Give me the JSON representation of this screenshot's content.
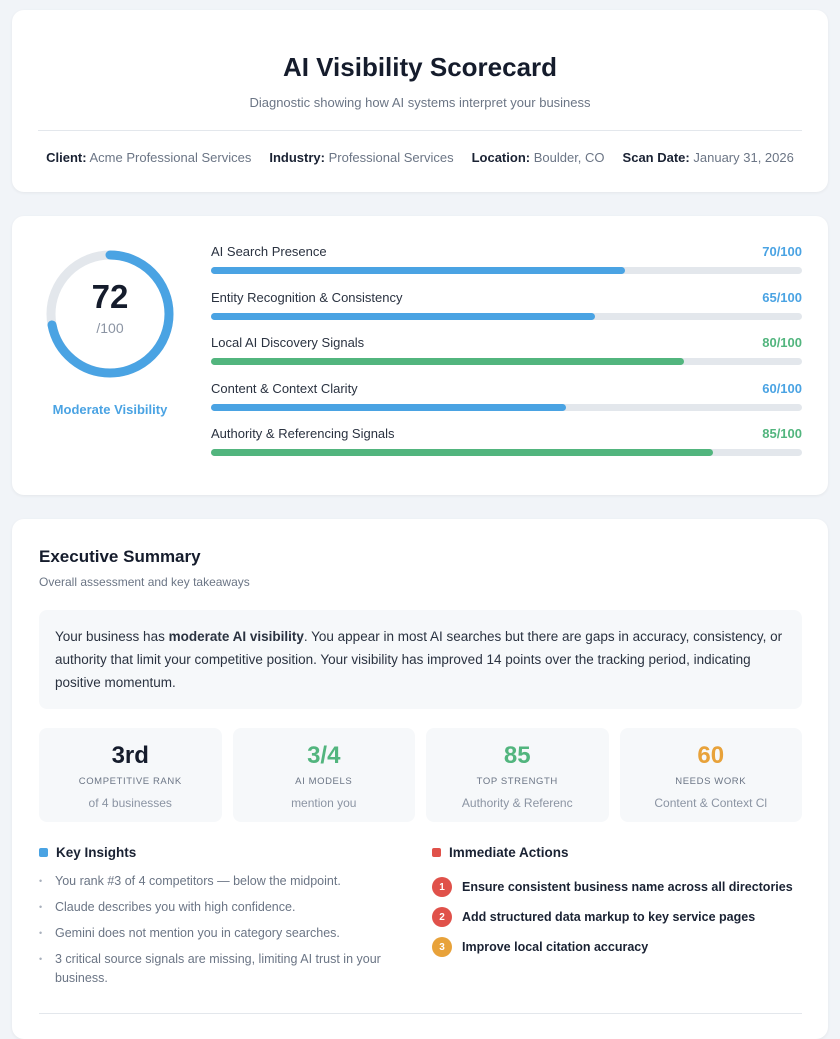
{
  "header": {
    "title": "AI Visibility Scorecard",
    "subtitle": "Diagnostic showing how AI systems interpret your business",
    "meta": [
      {
        "label": "Client:",
        "value": "Acme Professional Services"
      },
      {
        "label": "Industry:",
        "value": "Professional Services"
      },
      {
        "label": "Location:",
        "value": "Boulder, CO"
      },
      {
        "label": "Scan Date:",
        "value": "January 31, 2026"
      }
    ]
  },
  "score": {
    "value": "72",
    "max": "/100",
    "percent": 72,
    "label": "Moderate Visibility",
    "color": "#4aa3e3"
  },
  "categories": [
    {
      "label": "AI Search Presence",
      "value": "70/100",
      "percent": 70,
      "color": "#4aa3e3"
    },
    {
      "label": "Entity Recognition & Consistency",
      "value": "65/100",
      "percent": 65,
      "color": "#4aa3e3"
    },
    {
      "label": "Local AI Discovery Signals",
      "value": "80/100",
      "percent": 80,
      "color": "#52b57e"
    },
    {
      "label": "Content & Context Clarity",
      "value": "60/100",
      "percent": 60,
      "color": "#4aa3e3"
    },
    {
      "label": "Authority & Referencing Signals",
      "value": "85/100",
      "percent": 85,
      "color": "#52b57e"
    }
  ],
  "summary": {
    "title": "Executive Summary",
    "subtitle": "Overall assessment and key takeaways",
    "text_before": "Your business has ",
    "text_bold": "moderate AI visibility",
    "text_after": ". You appear in most AI searches but there are gaps in accuracy, consistency, or authority that limit your competitive position. Your visibility has improved 14 points over the tracking period, indicating positive momentum."
  },
  "stats": [
    {
      "value": "3rd",
      "key": "COMPETITIVE RANK",
      "desc": "of 4 businesses",
      "color": "#151c2c"
    },
    {
      "value": "3/4",
      "key": "AI MODELS",
      "desc": "mention you",
      "color": "#52b57e"
    },
    {
      "value": "85",
      "key": "TOP STRENGTH",
      "desc": "Authority & Referenc",
      "color": "#52b57e"
    },
    {
      "value": "60",
      "key": "NEEDS WORK",
      "desc": "Content & Context Cl",
      "color": "#e8a23a"
    }
  ],
  "insights": {
    "title": "Key Insights",
    "items": [
      "You rank #3 of 4 competitors — below the midpoint.",
      "Claude describes you with high confidence.",
      "Gemini does not mention you in category searches.",
      "3 critical source signals are missing, limiting AI trust in your business."
    ]
  },
  "actions": {
    "title": "Immediate Actions",
    "items": [
      {
        "n": "1",
        "text": "Ensure consistent business name across all directories",
        "color": "#e0514a"
      },
      {
        "n": "2",
        "text": "Add structured data markup to key service pages",
        "color": "#e0514a"
      },
      {
        "n": "3",
        "text": "Improve local citation accuracy",
        "color": "#e8a23a"
      }
    ]
  }
}
